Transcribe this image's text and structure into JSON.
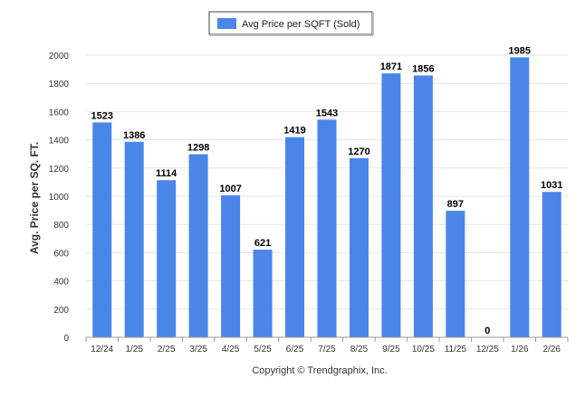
{
  "chart_data": {
    "type": "bar",
    "categories": [
      "12/24",
      "1/25",
      "2/25",
      "3/25",
      "4/25",
      "5/25",
      "6/25",
      "7/25",
      "8/25",
      "9/25",
      "10/25",
      "11/25",
      "12/25",
      "1/26",
      "2/26"
    ],
    "series": [
      {
        "name": "Avg Price per SQFT (Sold)",
        "values": [
          1523,
          1386,
          1114,
          1298,
          1007,
          621,
          1419,
          1543,
          1270,
          1871,
          1856,
          897,
          0,
          1985,
          1031
        ],
        "color": "#4a86e8"
      }
    ],
    "ylabel": "Avg. Price per SQ. FT.",
    "xlabel": "",
    "ylim": [
      0,
      2000
    ],
    "yticks": [
      0,
      200,
      400,
      600,
      800,
      1000,
      1200,
      1400,
      1600,
      1800,
      2000
    ],
    "grid": true,
    "legend_position": "top-center",
    "data_labels": true
  },
  "footer": {
    "copyright": "Copyright © Trendgraphix, Inc."
  }
}
